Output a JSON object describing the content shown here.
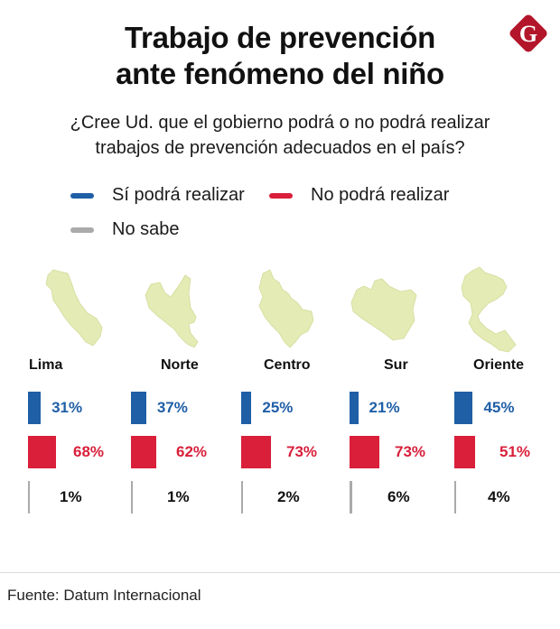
{
  "header": {
    "title_line1": "Trabajo de prevención",
    "title_line2": "ante fenómeno del niño",
    "logo_letter": "G",
    "logo_color": "#b3162b"
  },
  "question": {
    "line1": "¿Cree Ud. que el gobierno podrá o no podrá realizar",
    "line2": "trabajos de prevención adecuados en el país?"
  },
  "legend": [
    {
      "label": "Sí podrá realizar",
      "color": "#1f5fa6"
    },
    {
      "label": "No podrá realizar",
      "color": "#d91f3a"
    },
    {
      "label": "No sabe",
      "color": "#aaaaaa"
    }
  ],
  "map_color": "#e4ebb4",
  "chart_data": {
    "type": "bar",
    "title": "Trabajo de prevención ante fenómeno del niño",
    "subtitle": "¿Cree Ud. que el gobierno podrá o no podrá realizar trabajos de prevención adecuados en el país?",
    "categories": [
      "Lima",
      "Norte",
      "Centro",
      "Sur",
      "Oriente"
    ],
    "series": [
      {
        "name": "Sí podrá realizar",
        "color": "#1f5fa6",
        "values": [
          31,
          37,
          25,
          21,
          45
        ],
        "labels": [
          "31%",
          "37%",
          "25%",
          "21%",
          "45%"
        ]
      },
      {
        "name": "No podrá realizar",
        "color": "#d91f3a",
        "values": [
          68,
          62,
          73,
          73,
          51
        ],
        "labels": [
          "68%",
          "62%",
          "73%",
          "73%",
          "51%"
        ]
      },
      {
        "name": "No sabe",
        "color": "#aaaaaa",
        "values": [
          1,
          1,
          2,
          6,
          4
        ],
        "labels": [
          "1%",
          "1%",
          "2%",
          "6%",
          "4%"
        ]
      }
    ],
    "unit": "%",
    "legend_position": "top-left",
    "grid": false
  },
  "footer": {
    "source": "Fuente: Datum Internacional"
  }
}
